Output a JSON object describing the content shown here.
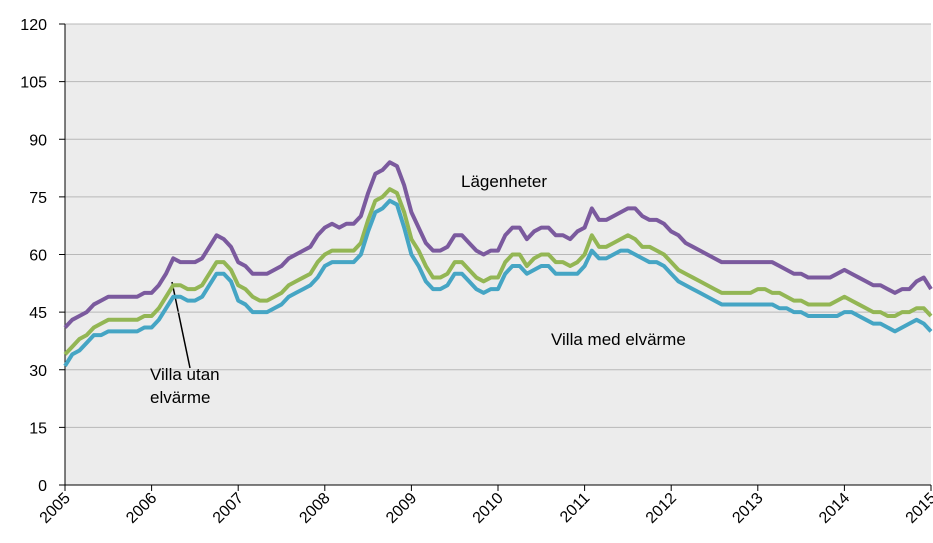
{
  "chart_data": {
    "type": "line",
    "categories": [
      "2005",
      null,
      null,
      null,
      null,
      null,
      null,
      null,
      null,
      null,
      null,
      null,
      "2006",
      null,
      null,
      null,
      null,
      null,
      null,
      null,
      null,
      null,
      null,
      null,
      "2007",
      null,
      null,
      null,
      null,
      null,
      null,
      null,
      null,
      null,
      null,
      null,
      "2008",
      null,
      null,
      null,
      null,
      null,
      null,
      null,
      null,
      null,
      null,
      null,
      "2009",
      null,
      null,
      null,
      null,
      null,
      null,
      null,
      null,
      null,
      null,
      null,
      "2010",
      null,
      null,
      null,
      null,
      null,
      null,
      null,
      null,
      null,
      null,
      null,
      "2011",
      null,
      null,
      null,
      null,
      null,
      null,
      null,
      null,
      null,
      null,
      null,
      "2012",
      null,
      null,
      null,
      null,
      null,
      null,
      null,
      null,
      null,
      null,
      null,
      "2013",
      null,
      null,
      null,
      null,
      null,
      null,
      null,
      null,
      null,
      null,
      null,
      "2014",
      null,
      null,
      null,
      null,
      null,
      null,
      null,
      null,
      null,
      null,
      null,
      "2015"
    ],
    "series": [
      {
        "name": "Lägenheter",
        "color": "#7b5a9e",
        "values": [
          41,
          43,
          44,
          45,
          47,
          48,
          49,
          49,
          49,
          49,
          49,
          50,
          50,
          52,
          55,
          59,
          58,
          58,
          58,
          59,
          62,
          65,
          64,
          62,
          58,
          57,
          55,
          55,
          55,
          56,
          57,
          59,
          60,
          61,
          62,
          65,
          67,
          68,
          67,
          68,
          68,
          70,
          76,
          81,
          82,
          84,
          83,
          78,
          71,
          67,
          63,
          61,
          61,
          62,
          65,
          65,
          63,
          61,
          60,
          61,
          61,
          65,
          67,
          67,
          64,
          66,
          67,
          67,
          65,
          65,
          64,
          66,
          67,
          72,
          69,
          69,
          70,
          71,
          72,
          72,
          70,
          69,
          69,
          68,
          66,
          65,
          63,
          62,
          61,
          60,
          59,
          58,
          58,
          58,
          58,
          58,
          58,
          58,
          58,
          57,
          56,
          55,
          55,
          54,
          54,
          54,
          54,
          55,
          56,
          55,
          54,
          53,
          52,
          52,
          51,
          50,
          51,
          51,
          53,
          54,
          51
        ]
      },
      {
        "name": "Villa utan elvärme",
        "color": "#93b654",
        "values": [
          34,
          36,
          38,
          39,
          41,
          42,
          43,
          43,
          43,
          43,
          43,
          44,
          44,
          46,
          49,
          52,
          52,
          51,
          51,
          52,
          55,
          58,
          58,
          56,
          52,
          51,
          49,
          48,
          48,
          49,
          50,
          52,
          53,
          54,
          55,
          58,
          60,
          61,
          61,
          61,
          61,
          63,
          69,
          74,
          75,
          77,
          76,
          71,
          64,
          61,
          57,
          54,
          54,
          55,
          58,
          58,
          56,
          54,
          53,
          54,
          54,
          58,
          60,
          60,
          57,
          59,
          60,
          60,
          58,
          58,
          57,
          58,
          60,
          65,
          62,
          62,
          63,
          64,
          65,
          64,
          62,
          62,
          61,
          60,
          58,
          56,
          55,
          54,
          53,
          52,
          51,
          50,
          50,
          50,
          50,
          50,
          51,
          51,
          50,
          50,
          49,
          48,
          48,
          47,
          47,
          47,
          47,
          48,
          49,
          48,
          47,
          46,
          45,
          45,
          44,
          44,
          45,
          45,
          46,
          46,
          44
        ]
      },
      {
        "name": "Villa med elvärme",
        "color": "#45a5c4",
        "values": [
          31,
          34,
          35,
          37,
          39,
          39,
          40,
          40,
          40,
          40,
          40,
          41,
          41,
          43,
          46,
          49,
          49,
          48,
          48,
          49,
          52,
          55,
          55,
          53,
          48,
          47,
          45,
          45,
          45,
          46,
          47,
          49,
          50,
          51,
          52,
          54,
          57,
          58,
          58,
          58,
          58,
          60,
          66,
          71,
          72,
          74,
          73,
          67,
          60,
          57,
          53,
          51,
          51,
          52,
          55,
          55,
          53,
          51,
          50,
          51,
          51,
          55,
          57,
          57,
          55,
          56,
          57,
          57,
          55,
          55,
          55,
          55,
          57,
          61,
          59,
          59,
          60,
          61,
          61,
          60,
          59,
          58,
          58,
          57,
          55,
          53,
          52,
          51,
          50,
          49,
          48,
          47,
          47,
          47,
          47,
          47,
          47,
          47,
          47,
          46,
          46,
          45,
          45,
          44,
          44,
          44,
          44,
          44,
          45,
          45,
          44,
          43,
          42,
          42,
          41,
          40,
          41,
          42,
          43,
          42,
          40
        ]
      }
    ],
    "ylim": [
      0,
      120
    ],
    "yticks": [
      0,
      15,
      30,
      45,
      60,
      75,
      90,
      105,
      120
    ],
    "grid": true
  }
}
